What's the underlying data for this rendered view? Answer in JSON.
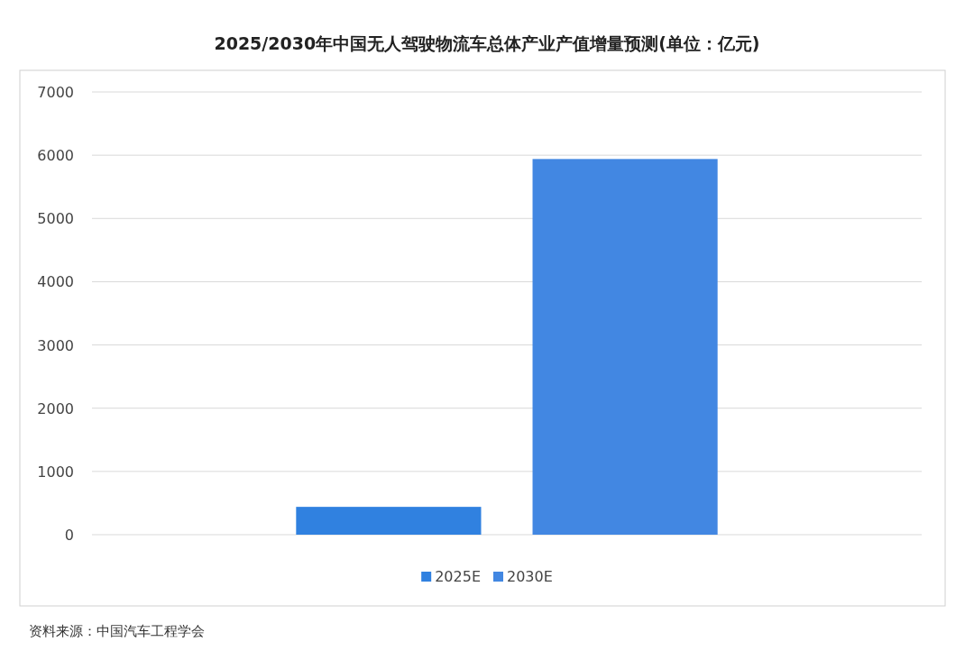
{
  "chart_data": {
    "type": "bar",
    "title": "2025/2030年中国无人驾驶物流车总体产业产值增量预测(单位：亿元)",
    "categories": [
      null
    ],
    "series": [
      {
        "name": "2025E",
        "color": "#3081e0",
        "values": [
          440
        ]
      },
      {
        "name": "2030E",
        "color": "#4287e2",
        "values": [
          5940
        ]
      }
    ],
    "ylim": [
      0,
      7000
    ],
    "yticks": [
      0,
      1000,
      2000,
      3000,
      4000,
      5000,
      6000,
      7000
    ],
    "grid": "y",
    "legend": "bottom",
    "annotations": [
      "资料来源：中国汽车工程学会"
    ]
  }
}
